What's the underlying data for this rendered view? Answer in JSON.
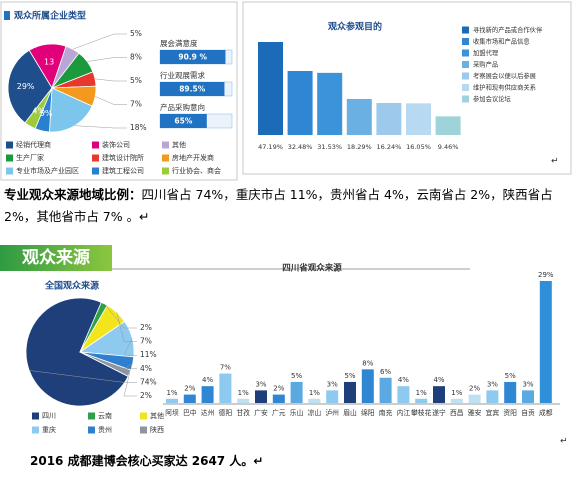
{
  "chart_data": [
    {
      "type": "pie",
      "title": "观众所属企业类型",
      "categories": [
        "经销代理商",
        "装饰公司",
        "其他",
        "生产厂家",
        "建筑设计院所",
        "房地产开发商",
        "专业市场及产业园区",
        "建筑工程公司",
        "行业协会、商会"
      ],
      "values": [
        29,
        13,
        5,
        8,
        5,
        7,
        18,
        5,
        4
      ],
      "value_labels": [
        "29%",
        "13",
        "5%",
        "8%",
        "5%",
        "7%",
        "18%",
        "5%",
        "4%"
      ],
      "colors": [
        "#1f4e8c",
        "#e2007a",
        "#b9a6d6",
        "#1a9a3c",
        "#e8382d",
        "#f39a1e",
        "#7cc6ee",
        "#2a7fcf",
        "#9ccb3b"
      ]
    },
    {
      "type": "hbar",
      "categories": [
        "展会满意度",
        "行业观展需求",
        "产品采购意向"
      ],
      "values": [
        90.9,
        89.5,
        65
      ],
      "value_labels": [
        "90.9 %",
        "89.5%",
        "65%"
      ],
      "xlim": [
        0,
        100
      ],
      "color": "#1f73c2"
    },
    {
      "type": "bar",
      "title": "观众参观目的",
      "categories": [
        "寻找新的产品或合作伙伴",
        "收集市场和产品信息",
        "加盟代理",
        "采购产品",
        "考察展会以便以后参展",
        "维护和现有供应商关系",
        "参加会议论坛"
      ],
      "values": [
        47.19,
        32.48,
        31.53,
        18.29,
        16.24,
        16.05,
        9.46
      ],
      "value_labels": [
        "47.19%",
        "32.48%",
        "31.53%",
        "18.29%",
        "16.24%",
        "16.05%",
        "9.46%"
      ],
      "colors": [
        "#1c6bb8",
        "#2f86d2",
        "#3b93da",
        "#6bb0e3",
        "#9dcaec",
        "#b7d9f1",
        "#9fd3da"
      ]
    },
    {
      "type": "pie",
      "title": "全国观众来源",
      "categories": [
        "四川",
        "云南",
        "其他",
        "重庆",
        "贵州",
        "陕西"
      ],
      "values": [
        74,
        2,
        7,
        11,
        4,
        2
      ],
      "value_labels": [
        "74%",
        "2%",
        "7%",
        "11%",
        "4%",
        "2%"
      ],
      "colors": [
        "#1f3f7a",
        "#2ea04a",
        "#f2e51c",
        "#8ec9ef",
        "#2f7fd0",
        "#8c95a0"
      ]
    },
    {
      "type": "bar",
      "title": "四川省观众来源",
      "categories": [
        "阿坝",
        "巴中",
        "达州",
        "德阳",
        "甘孜",
        "广安",
        "广元",
        "乐山",
        "凉山",
        "泸州",
        "眉山",
        "绵阳",
        "南充",
        "内江",
        "攀枝花",
        "遂宁",
        "西昌",
        "雅安",
        "宜宾",
        "资阳",
        "自贡",
        "成都"
      ],
      "values": [
        1,
        2,
        4,
        7,
        1,
        3,
        2,
        5,
        1,
        3,
        5,
        8,
        6,
        4,
        1,
        4,
        1,
        2,
        3,
        5,
        3,
        29
      ],
      "value_labels": [
        "1%",
        "2%",
        "4%",
        "7%",
        "1%",
        "3%",
        "2%",
        "5%",
        "1%",
        "3%",
        "5%",
        "8%",
        "6%",
        "4%",
        "1%",
        "4%",
        "1%",
        "2%",
        "3%",
        "5%",
        "3%",
        "29%"
      ],
      "colors": [
        "#8ec9ef",
        "#2f86d2",
        "#2f86d2",
        "#8ec9ef",
        "#bfe0f2",
        "#1f3f7a",
        "#2f86d2",
        "#5aa9e0",
        "#bfe0f2",
        "#8ec9ef",
        "#1f3f7a",
        "#2f86d2",
        "#5aa9e0",
        "#8ec9ef",
        "#8ec9ef",
        "#1f3f7a",
        "#bfe0f2",
        "#bfe0f2",
        "#8ec9ef",
        "#2f86d2",
        "#5aa9e0",
        "#2f8fd8"
      ]
    }
  ],
  "document": {
    "paragraph": {
      "lead": "专业观众来源地域比例：",
      "body": "四川省占 74%，重庆市占 11%，贵州省占 4%，云南省占 2%，陕西省占 2%，其他省市占 7% 。↵"
    },
    "banner": "观众来源",
    "return_mark": "↵",
    "footer": "2016 成都建博会核心买家达 2647 人。↵"
  }
}
